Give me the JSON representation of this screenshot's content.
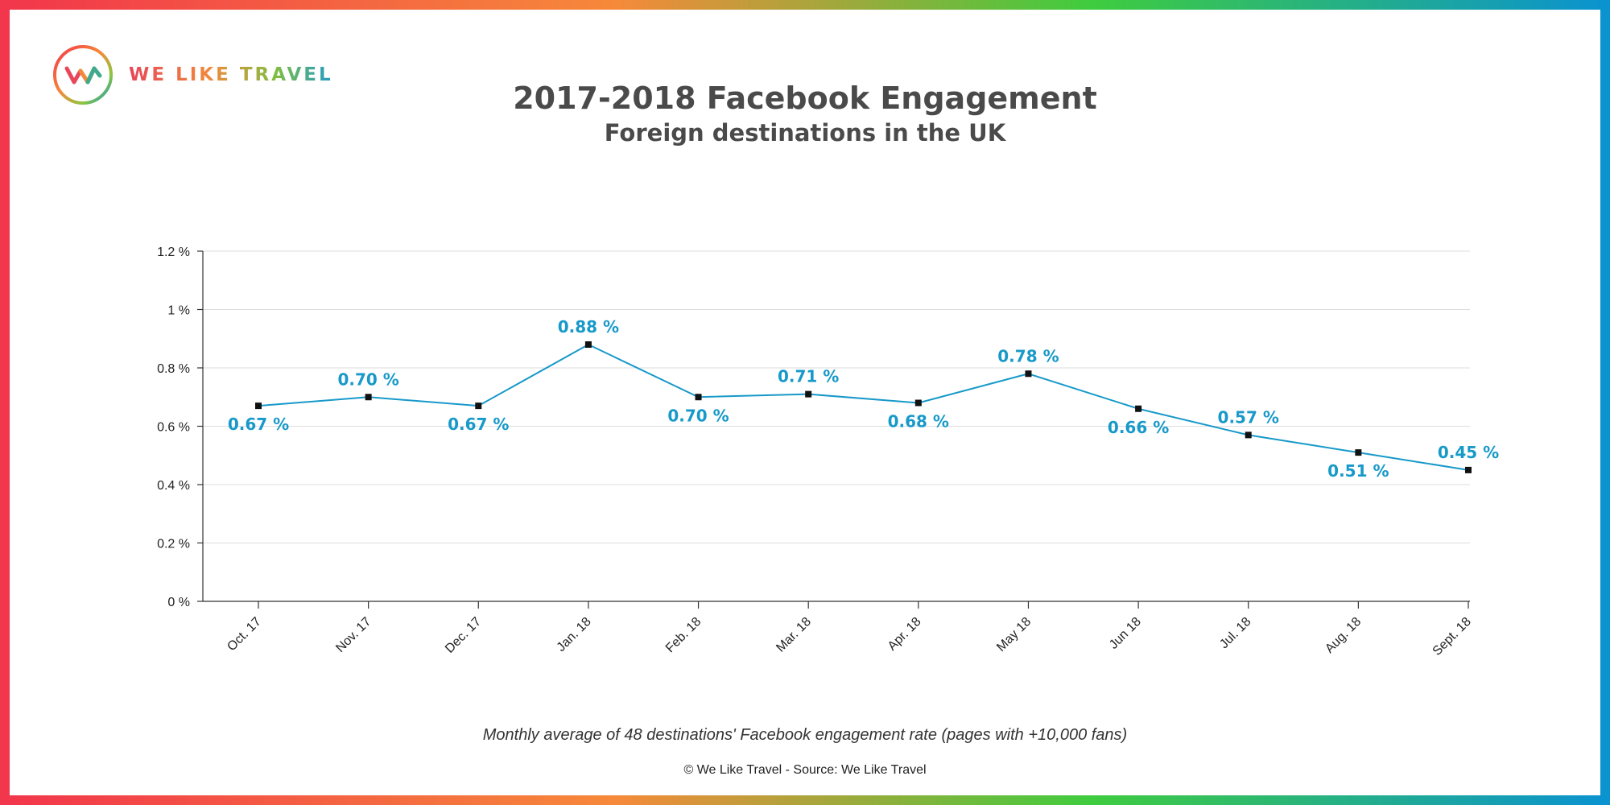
{
  "brand": {
    "name": "WE LIKE TRAVEL",
    "logo_icon": "we-like-travel-logo-icon"
  },
  "colors": {
    "line": "#1799c9",
    "label": "#1799c9",
    "marker": "#111111",
    "axis": "#333333",
    "grid": "#dddddd",
    "text": "#4a4a4a"
  },
  "header": {
    "title": "2017-2018 Facebook Engagement",
    "subtitle": "Foreign destinations in the UK"
  },
  "chart_data": {
    "type": "line",
    "title": "2017-2018 Facebook Engagement",
    "subtitle": "Foreign destinations in the UK",
    "xlabel": "",
    "ylabel": "",
    "categories": [
      "Oct. 17",
      "Nov. 17",
      "Dec. 17",
      "Jan. 18",
      "Feb. 18",
      "Mar. 18",
      "Apr. 18",
      "May 18",
      "Jun 18",
      "Jul. 18",
      "Aug. 18",
      "Sept. 18"
    ],
    "series": [
      {
        "values": [
          0.67,
          0.7,
          0.67,
          0.88,
          0.7,
          0.71,
          0.68,
          0.78,
          0.66,
          0.57,
          0.51,
          0.45
        ],
        "data_labels": [
          "0.67 %",
          "0.70 %",
          "0.67 %",
          "0.88 %",
          "0.70 %",
          "0.71 %",
          "0.68 %",
          "0.78 %",
          "0.66 %",
          "0.57 %",
          "0.51 %",
          "0.45 %"
        ],
        "label_positions": [
          "below",
          "above",
          "below",
          "above",
          "below",
          "above",
          "below",
          "above",
          "below",
          "above",
          "below",
          "above"
        ]
      }
    ],
    "ylim": [
      0,
      1.2
    ],
    "yticks": [
      0,
      0.2,
      0.4,
      0.6,
      0.8,
      1.0,
      1.2
    ],
    "ytick_labels": [
      "0 %",
      "0.2 %",
      "0.4 %",
      "0.6 %",
      "0.8 %",
      "1 %",
      "1.2 %"
    ],
    "grid": true,
    "legend": "none"
  },
  "footer": {
    "caption": "Monthly average of 48 destinations' Facebook engagement rate (pages with +10,000 fans)",
    "source": "© We Like Travel - Source: We Like Travel"
  }
}
